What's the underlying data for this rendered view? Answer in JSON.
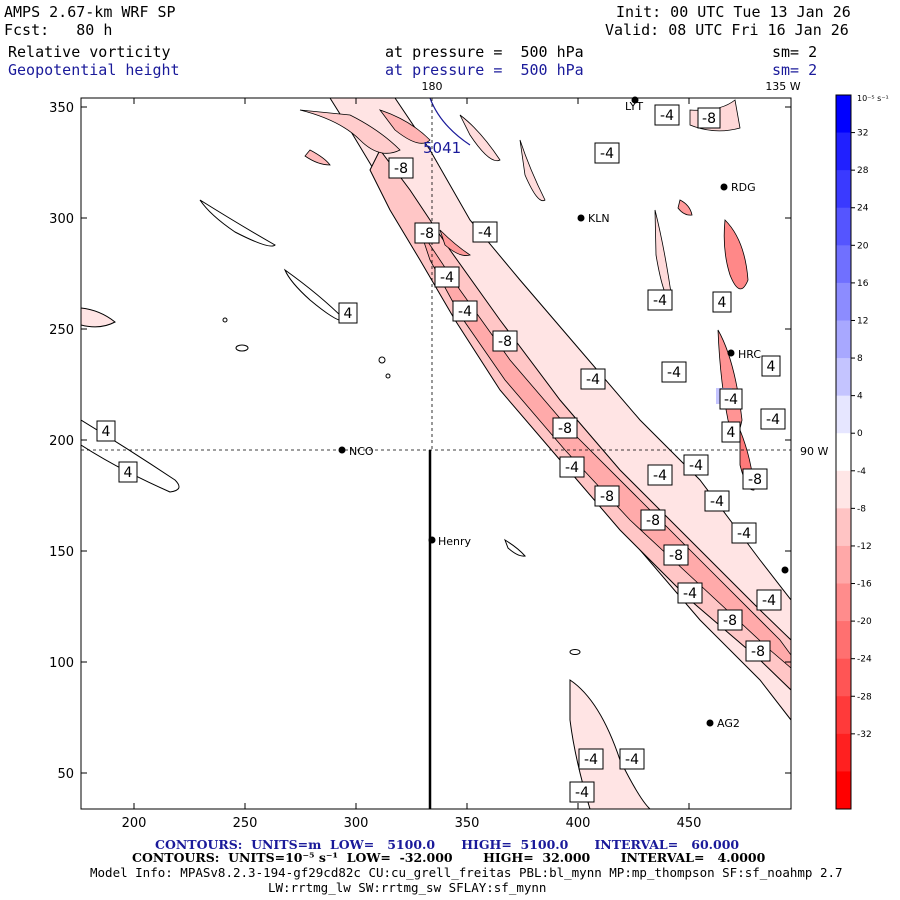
{
  "header": {
    "title": "AMPS 2.67-km WRF SP",
    "forecast": "Fcst:   80 h",
    "init": "Init: 00 UTC Tue 13 Jan 26",
    "valid": "Valid: 08 UTC Fri 16 Jan 26",
    "field1_name": "Relative vorticity",
    "field1_level": "at pressure =  500 hPa",
    "field1_smooth": "sm= 2",
    "field2_name": "Geopotential height",
    "field2_level": "at pressure =  500 hPa",
    "field2_smooth": "sm= 2"
  },
  "map": {
    "lon_180": "180",
    "lon_135w": "135 W",
    "lon_90w": "90 W",
    "x_ticks": [
      "200",
      "250",
      "300",
      "350",
      "400",
      "450"
    ],
    "y_ticks": [
      "350",
      "300",
      "250",
      "200",
      "150",
      "100",
      "50"
    ],
    "geopotential_label": "5041",
    "stations": [
      "NCO",
      "Henry",
      "KLN",
      "RDG",
      "HRC",
      "AG2",
      "LYT"
    ],
    "contour_labels_neg4": "-4",
    "contour_labels_neg8": "-8",
    "contour_labels_pos4": "4"
  },
  "colorbar": {
    "unit": "10⁻⁵ s⁻¹",
    "labels": [
      "32",
      "28",
      "24",
      "20",
      "16",
      "12",
      "8",
      "4",
      "0",
      "-4",
      "-8",
      "-12",
      "-16",
      "-20",
      "-24",
      "-28",
      "-32"
    ],
    "colors": [
      "#0000ff",
      "#2020ff",
      "#3a3aff",
      "#5555ff",
      "#7070ff",
      "#8c8cff",
      "#a8a8ff",
      "#c4c4ff",
      "#e6e6ff",
      "#ffffff",
      "#ffe6e6",
      "#ffc4c4",
      "#ffa8a8",
      "#ff8c8c",
      "#ff7070",
      "#ff5555",
      "#ff3a3a",
      "#ff2020",
      "#ff0000"
    ]
  },
  "footer": {
    "line1": "CONTOURS:  UNITS=m  LOW=   5100.0      HIGH=  5100.0      INTERVAL=   60.000",
    "line2": "CONTOURS:  UNITS=10⁻⁵ s⁻¹  LOW=  -32.000       HIGH=  32.000       INTERVAL=   4.0000",
    "line3": "Model Info: MPASv8.2.3-194-gf29cd82c CU:cu_grell_freitas PBL:bl_mynn MP:mp_thompson SF:sf_noahmp 2.7",
    "line4": "LW:rrtmg_lw SW:rrtmg_sw SFLAY:sf_mynn"
  }
}
